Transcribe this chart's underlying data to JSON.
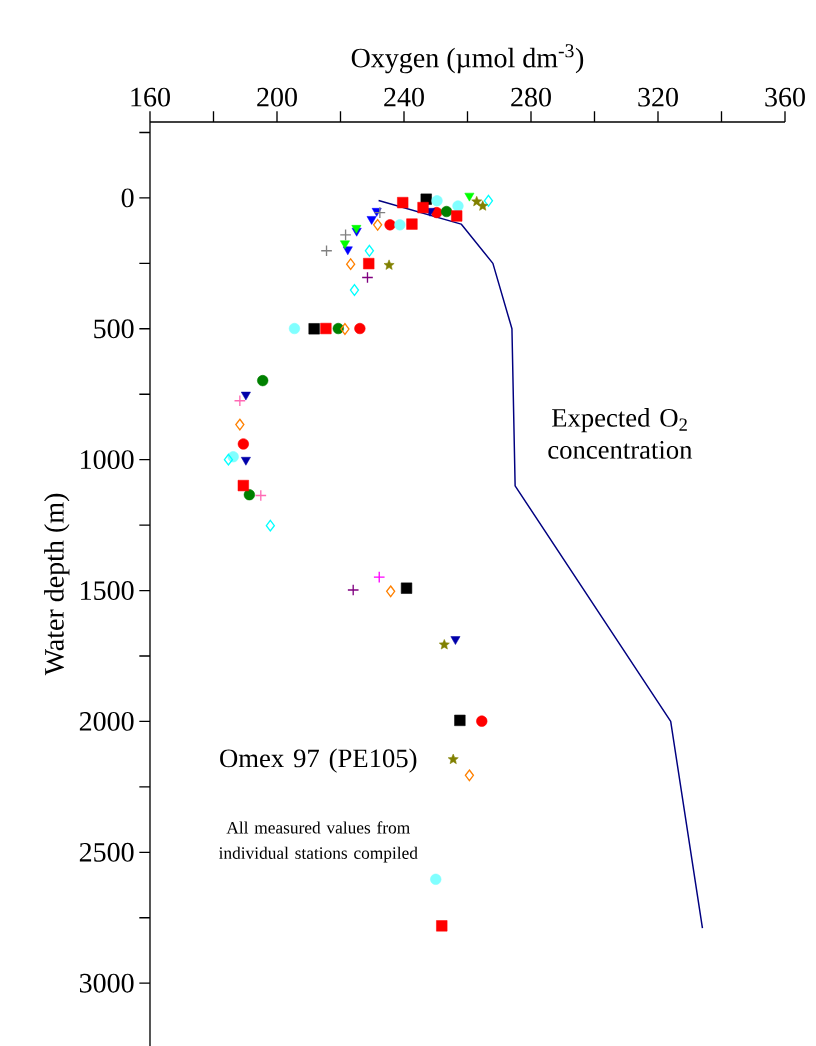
{
  "chart_data": {
    "type": "scatter",
    "xlabel": "Oxygen (µmol dm$^{-3}$)",
    "ylabel": "Water depth (m)",
    "xlim": [
      160,
      360
    ],
    "ylim": [
      3240,
      -290
    ],
    "xticks": [
      160,
      {
        "value": 180,
        "label": null
      },
      200,
      {
        "value": 220,
        "label": null
      },
      240,
      {
        "value": 260,
        "label": null
      },
      280,
      {
        "value": 300,
        "label": null
      },
      320,
      {
        "value": 340,
        "label": null
      },
      360
    ],
    "yticks": [
      {
        "value": -250,
        "label": null
      },
      0,
      {
        "value": 250,
        "label": null
      },
      500,
      {
        "value": 750,
        "label": null
      },
      1000,
      {
        "value": 1250,
        "label": null
      },
      1500,
      {
        "value": 1750,
        "label": null
      },
      2000,
      {
        "value": 2250,
        "label": null
      },
      2500,
      {
        "value": 2750,
        "label": null
      },
      3000
    ],
    "annotations": [
      "Omex 97 (PE105)",
      "All measured values from individual stations compiled"
    ],
    "series": [
      {
        "type": "line",
        "name": "Expected O$_{2}$ concentration",
        "color": "#000080",
        "x": [
          232,
          258,
          268,
          274,
          275,
          324,
          334
        ],
        "values": [
          10,
          100,
          250,
          500,
          1100,
          2000,
          2790
        ]
      },
      {
        "marker": "square",
        "color": "#000000",
        "x": [
          247,
          211.7,
          240.8,
          257.6
        ],
        "values": [
          5,
          500,
          1491,
          1996
        ]
      },
      {
        "marker": "circle",
        "color": "#ff0000",
        "x": [
          250.3,
          235.6,
          226.1,
          189.4,
          264.5
        ],
        "values": [
          56,
          103,
          499,
          940,
          1999
        ]
      },
      {
        "marker": "circle",
        "color": "#80ffff",
        "x": [
          250.4,
          257,
          238.7,
          205.5,
          186.2,
          250
        ],
        "values": [
          11,
          31,
          103,
          499,
          989,
          2603
        ]
      },
      {
        "marker": "circle",
        "color": "#008000",
        "x": [
          253.4,
          219.3,
          195.5,
          191.3
        ],
        "values": [
          52,
          499,
          698,
          1134
        ]
      },
      {
        "marker": "triangle",
        "color": "#0000ff",
        "x": [
          231.4,
          229.8,
          225.1,
          222.3
        ],
        "values": [
          50,
          81,
          126,
          197
        ]
      },
      {
        "marker": "triangle",
        "color": "#0000aa",
        "x": [
          248.2,
          190.2,
          190.2,
          256.2
        ],
        "values": [
          50,
          752,
          1001,
          1686
        ]
      },
      {
        "marker": "triangle",
        "color": "#00ff00",
        "x": [
          260.6,
          225,
          221.4
        ],
        "values": [
          -8,
          115,
          174
        ]
      },
      {
        "marker": "diamond",
        "color": "#ff8000",
        "x": [
          231.7,
          223.2,
          221.4,
          188.3,
          235.8,
          260.6
        ],
        "values": [
          103,
          253,
          501,
          866,
          1503,
          2206
        ]
      },
      {
        "marker": "diamond",
        "color": "#00ffff",
        "x": [
          266.6,
          229.1,
          224.4,
          184.7,
          197.9
        ],
        "values": [
          11,
          202,
          352,
          1000,
          1252
        ]
      },
      {
        "marker": "star",
        "color": "#808000",
        "x": [
          262.9,
          264.8,
          235.3,
          252.7,
          255.5
        ],
        "values": [
          14,
          31,
          257,
          1707,
          2145
        ]
      },
      {
        "marker": "cross",
        "color": "#800080",
        "x": [
          228.5,
          224
        ],
        "values": [
          304,
          1498
        ]
      },
      {
        "marker": "cross",
        "color": "#ff00ff",
        "x": [
          232.2
        ],
        "values": [
          1449
        ]
      },
      {
        "marker": "cross",
        "color": "#808080",
        "x": [
          232.4,
          221.6,
          215.6
        ],
        "values": [
          56,
          141,
          202
        ]
      },
      {
        "marker": "cross",
        "color": "#ff69b4",
        "x": [
          188.3,
          194.9
        ],
        "values": [
          775,
          1137
        ]
      },
      {
        "marker": "square",
        "color": "#ff0000",
        "x": [
          239.6,
          246,
          256.6,
          242.5,
          228.9,
          215.4,
          189.4,
          251.9
        ],
        "values": [
          18,
          37,
          69,
          100,
          251,
          499,
          1099,
          2781
        ]
      }
    ]
  }
}
